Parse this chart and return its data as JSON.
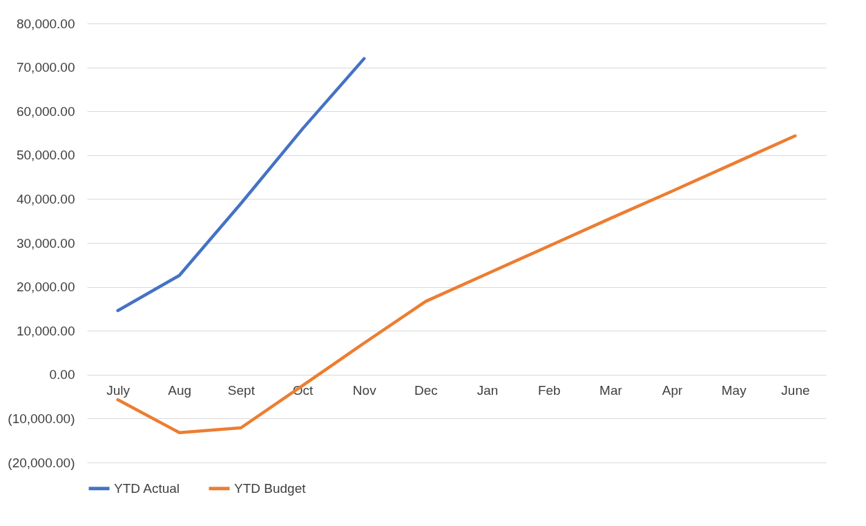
{
  "chart_data": {
    "type": "line",
    "categories": [
      "July",
      "Aug",
      "Sept",
      "Oct",
      "Nov",
      "Dec",
      "Jan",
      "Feb",
      "Mar",
      "Apr",
      "May",
      "June"
    ],
    "series": [
      {
        "name": "YTD Actual",
        "color": "#4472c4",
        "values": [
          14600,
          22600,
          39000,
          56000,
          72000,
          null,
          null,
          null,
          null,
          null,
          null,
          null
        ]
      },
      {
        "name": "YTD Budget",
        "color": "#ed7d31",
        "values": [
          -5700,
          -13200,
          -12100,
          -2500,
          7200,
          16700,
          23000,
          29300,
          35600,
          41800,
          48100,
          54400
        ]
      }
    ],
    "ylim": [
      -20000,
      80000
    ],
    "yticks": [
      {
        "value": -20000,
        "label": "(20,000.00)"
      },
      {
        "value": -10000,
        "label": "(10,000.00)"
      },
      {
        "value": 0,
        "label": "0.00"
      },
      {
        "value": 10000,
        "label": "10,000.00"
      },
      {
        "value": 20000,
        "label": "20,000.00"
      },
      {
        "value": 30000,
        "label": "30,000.00"
      },
      {
        "value": 40000,
        "label": "40,000.00"
      },
      {
        "value": 50000,
        "label": "50,000.00"
      },
      {
        "value": 60000,
        "label": "60,000.00"
      },
      {
        "value": 70000,
        "label": "70,000.00"
      },
      {
        "value": 80000,
        "label": "80,000.00"
      }
    ],
    "grid": "y",
    "legend": "bottom",
    "marker": "none",
    "line_style": "solid"
  }
}
